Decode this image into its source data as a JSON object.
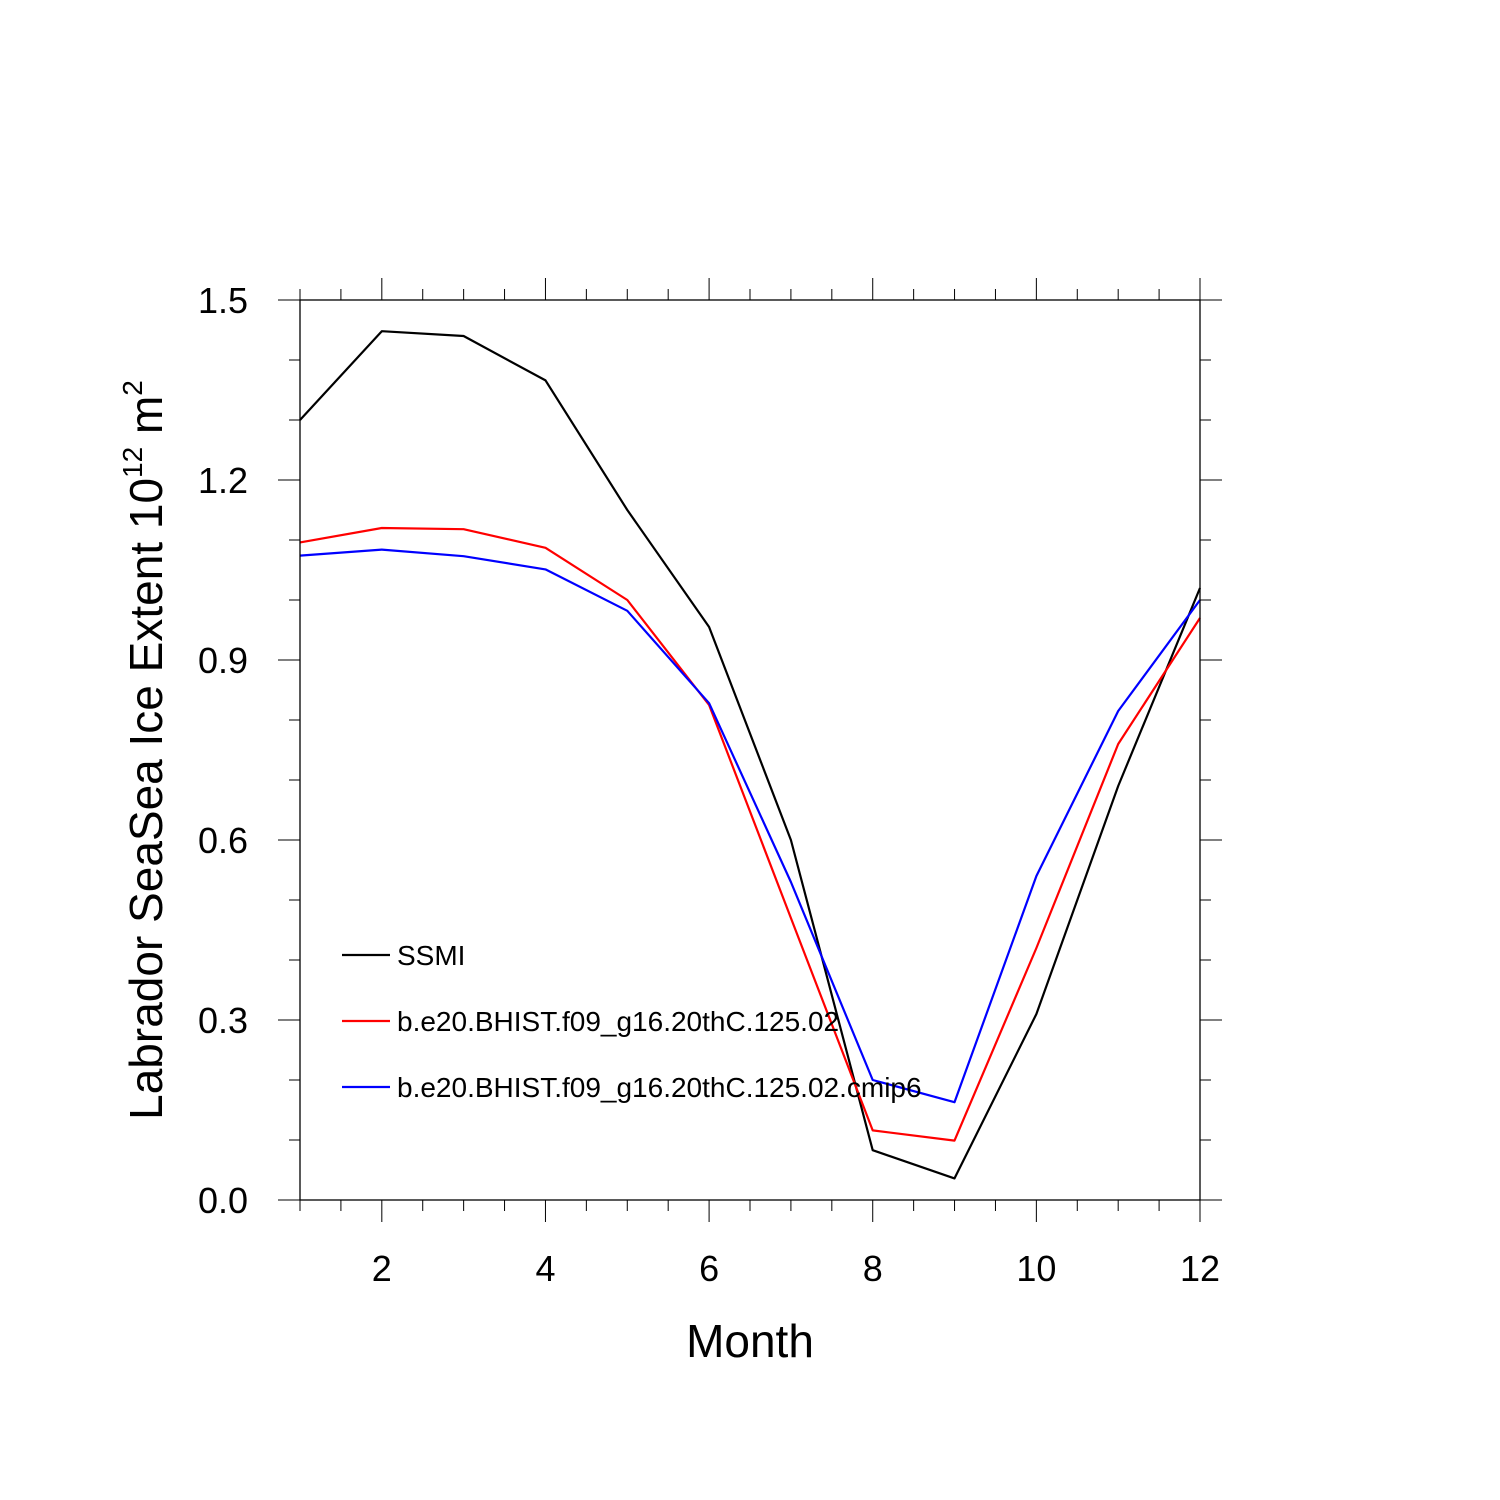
{
  "chart_data": {
    "type": "line",
    "xlabel": "Month",
    "ylabel": "Labrador SeaSea Ice Extent 10",
    "ylabel_sup1": "12",
    "ylabel_unit": " m",
    "ylabel_sup2": "2",
    "xlim": [
      1,
      12
    ],
    "ylim": [
      0.0,
      1.5
    ],
    "x_ticks": [
      2,
      4,
      6,
      8,
      10,
      12
    ],
    "x_tick_labels": [
      "2",
      "4",
      "6",
      "8",
      "10",
      "12"
    ],
    "y_ticks": [
      0.0,
      0.3,
      0.6,
      0.9,
      1.2,
      1.5
    ],
    "y_tick_labels": [
      "0.0",
      "0.3",
      "0.6",
      "0.9",
      "1.2",
      "1.5"
    ],
    "grid": false,
    "legend_position": "lower-left",
    "x": [
      1,
      2,
      3,
      4,
      5,
      6,
      7,
      8,
      9,
      10,
      11,
      12
    ],
    "series": [
      {
        "name": "SSMI",
        "color": "#000000",
        "values": [
          1.3,
          1.448,
          1.44,
          1.366,
          1.15,
          0.955,
          0.6,
          0.083,
          0.036,
          0.31,
          0.69,
          1.02
        ]
      },
      {
        "name": "b.e20.BHIST.f09_g16.20thC.125.02",
        "color": "#ff0000",
        "values": [
          1.096,
          1.12,
          1.118,
          1.087,
          1.0,
          0.825,
          0.47,
          0.116,
          0.099,
          0.42,
          0.76,
          0.97
        ]
      },
      {
        "name": "b.e20.BHIST.f09_g16.20thC.125.02.cmip6",
        "color": "#0000ff",
        "values": [
          1.074,
          1.084,
          1.073,
          1.051,
          0.982,
          0.828,
          0.53,
          0.2,
          0.163,
          0.54,
          0.815,
          1.0
        ]
      }
    ]
  }
}
